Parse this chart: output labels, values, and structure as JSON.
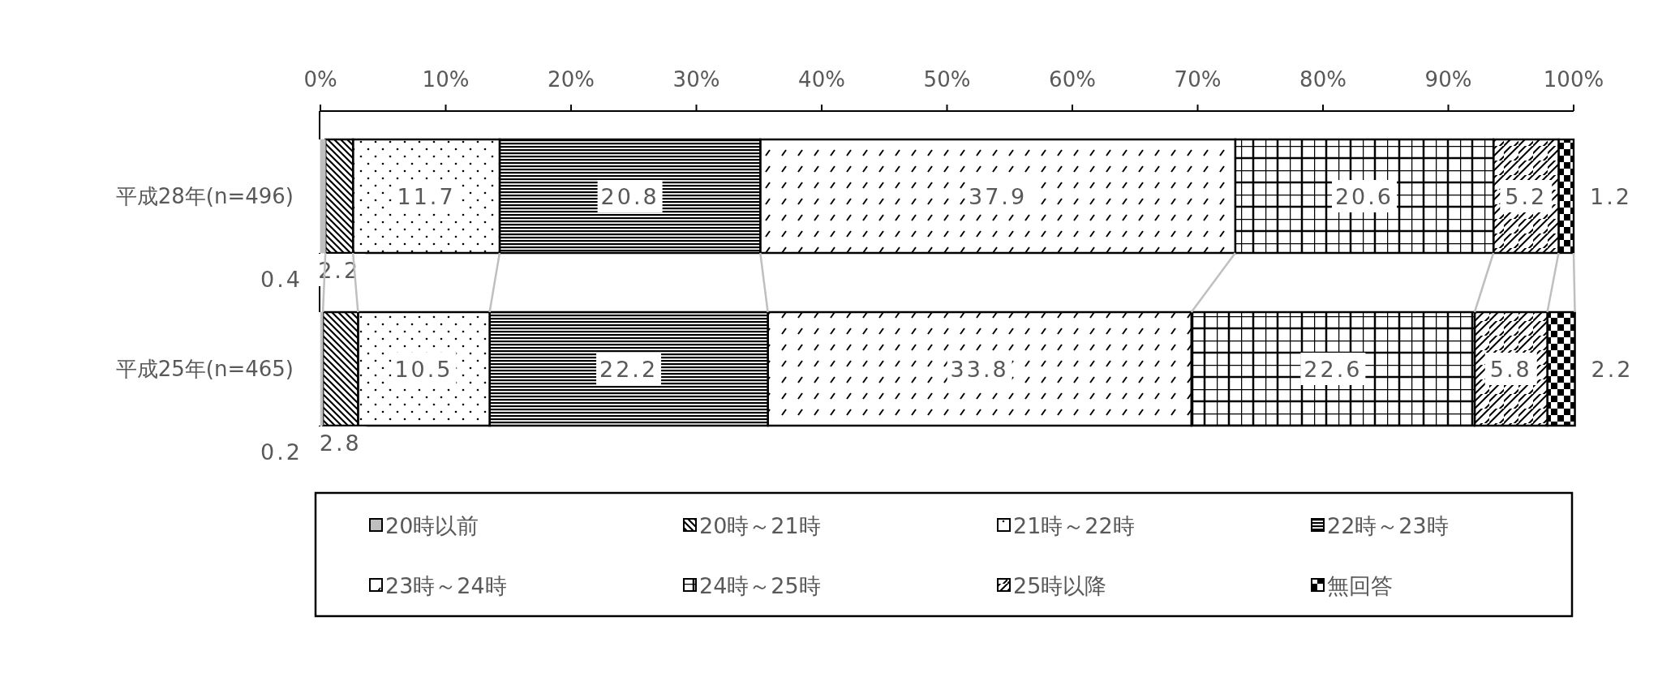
{
  "chart_data": {
    "type": "bar",
    "orientation": "horizontal",
    "stacked": true,
    "categories": [
      "平成28年(n=496)",
      "平成25年(n=465)"
    ],
    "xlim": [
      0,
      100
    ],
    "xticks": [
      {
        "value": 0,
        "label": "0%"
      },
      {
        "value": 10,
        "label": "10%"
      },
      {
        "value": 20,
        "label": "20%"
      },
      {
        "value": 30,
        "label": "30%"
      },
      {
        "value": 40,
        "label": "40%"
      },
      {
        "value": 50,
        "label": "50%"
      },
      {
        "value": 60,
        "label": "60%"
      },
      {
        "value": 70,
        "label": "70%"
      },
      {
        "value": 80,
        "label": "80%"
      },
      {
        "value": 90,
        "label": "90%"
      },
      {
        "value": 100,
        "label": "100%"
      }
    ],
    "series": [
      {
        "name": "20時以前",
        "color": "#bfbfbf",
        "values": [
          0.4,
          0.2
        ]
      },
      {
        "name": "20時～21時",
        "color": "#000000",
        "values": [
          2.2,
          2.8
        ]
      },
      {
        "name": "21時～22時",
        "color": "#000000",
        "values": [
          11.7,
          10.5
        ]
      },
      {
        "name": "22時～23時",
        "color": "#000000",
        "values": [
          20.8,
          22.2
        ]
      },
      {
        "name": "23時～24時",
        "color": "#000000",
        "values": [
          37.9,
          33.8
        ]
      },
      {
        "name": "24時～25時",
        "color": "#000000",
        "values": [
          20.6,
          22.6
        ]
      },
      {
        "name": "25時以降",
        "color": "#000000",
        "values": [
          5.2,
          5.8
        ]
      },
      {
        "name": "無回答",
        "color": "#000000",
        "values": [
          1.2,
          2.2
        ]
      }
    ],
    "data_labels": true,
    "legend": "bottom",
    "grid": false
  }
}
